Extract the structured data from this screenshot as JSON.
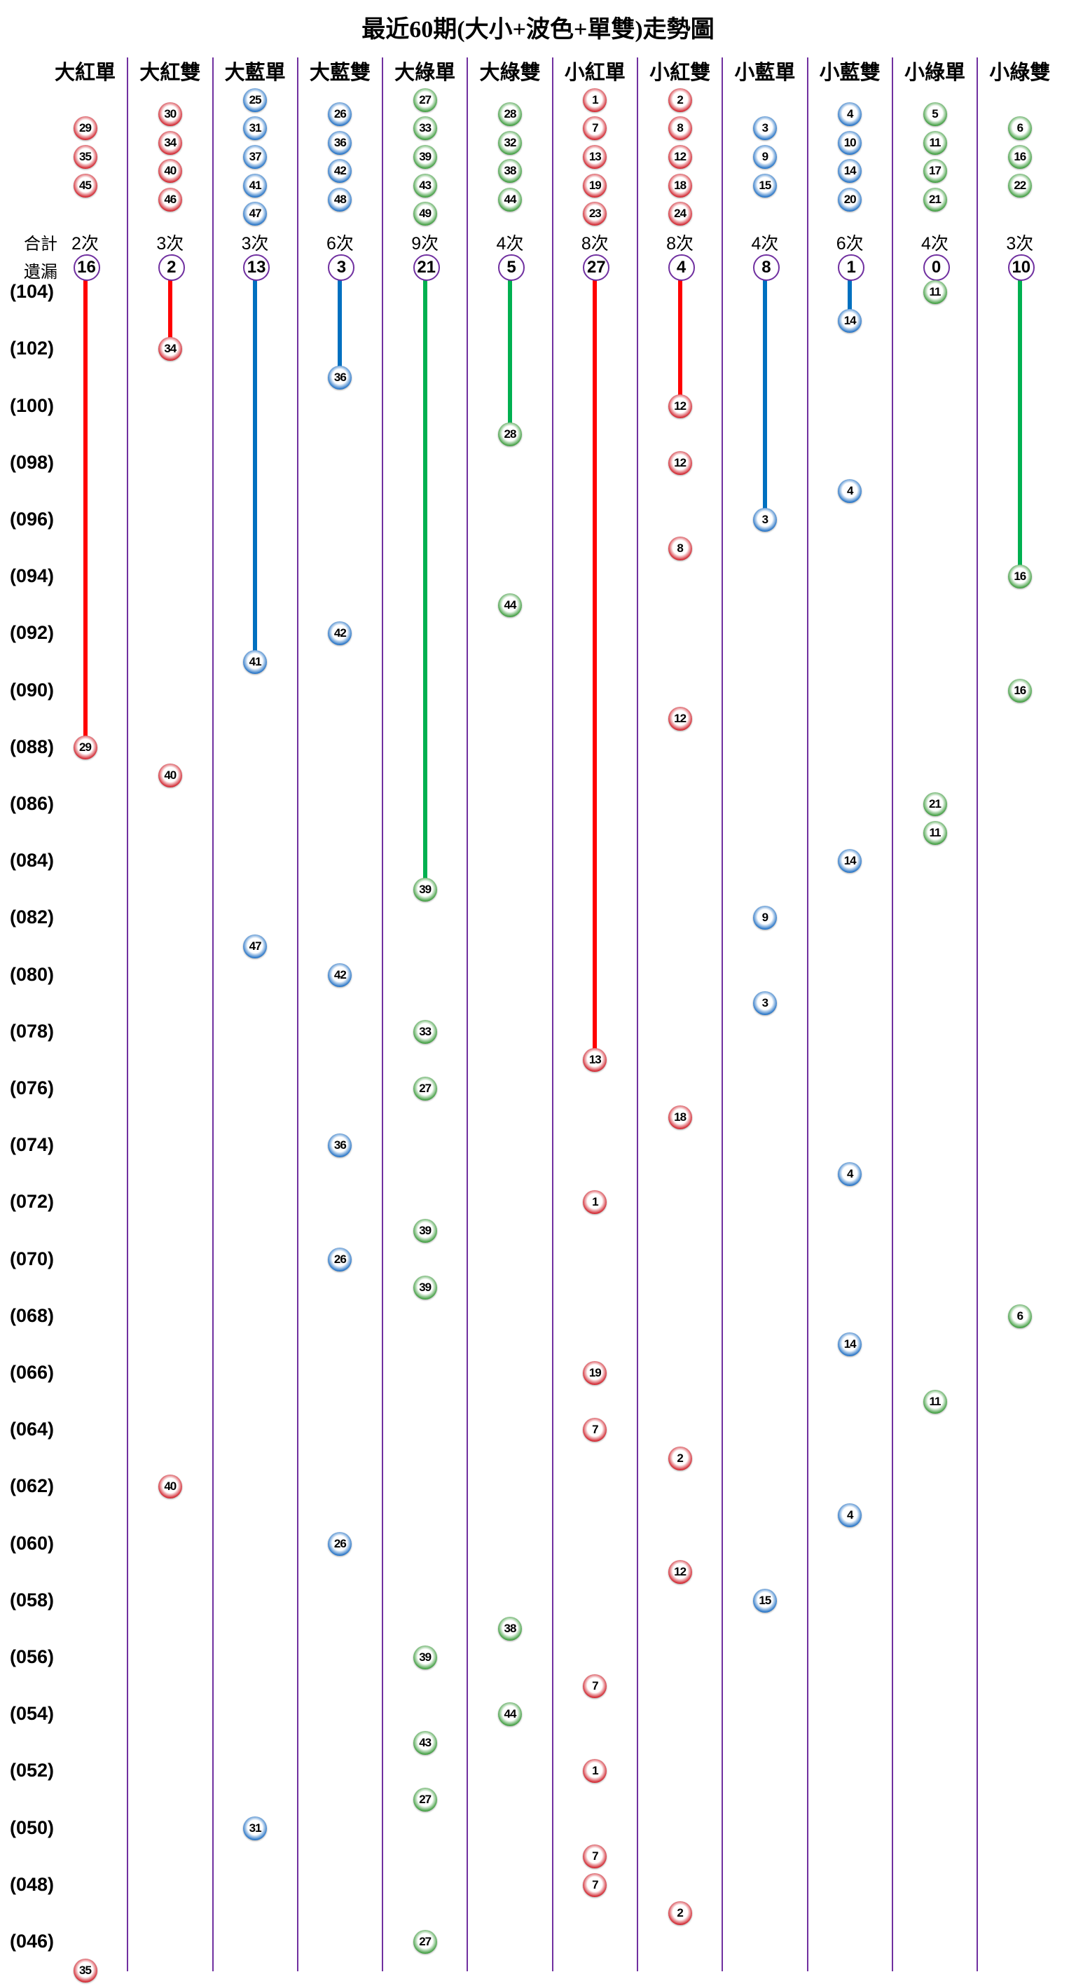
{
  "title": "最近60期(大小+波色+單雙)走勢圖",
  "labels": {
    "total": "合計",
    "missing": "遺漏"
  },
  "colors": {
    "red": "#d0202a",
    "blue": "#1f6fc4",
    "green": "#3b9b3b",
    "line_red": "#ff0000",
    "line_blue": "#0070c0",
    "line_green": "#00b050",
    "divider": "#7030a0"
  },
  "period_labels": [
    "(104)",
    "(102)",
    "(100)",
    "(098)",
    "(096)",
    "(094)",
    "(092)",
    "(090)",
    "(088)",
    "(086)",
    "(084)",
    "(082)",
    "(080)",
    "(078)",
    "(076)",
    "(074)",
    "(072)",
    "(070)",
    "(068)",
    "(066)",
    "(064)",
    "(062)",
    "(060)",
    "(058)",
    "(056)",
    "(054)",
    "(052)",
    "(050)",
    "(048)",
    "(046)"
  ],
  "columns": [
    {
      "name": "大紅單",
      "color": "red",
      "header_balls": [
        "29",
        "35",
        "45"
      ],
      "count": "2次",
      "miss": "16",
      "draws": [
        {
          "period": 88,
          "number": "29"
        },
        {
          "period": 45,
          "number": "35"
        }
      ]
    },
    {
      "name": "大紅雙",
      "color": "red",
      "header_balls": [
        "30",
        "34",
        "40",
        "46"
      ],
      "count": "3次",
      "miss": "2",
      "draws": [
        {
          "period": 102,
          "number": "34"
        },
        {
          "period": 87,
          "number": "40"
        },
        {
          "period": 62,
          "number": "40"
        }
      ]
    },
    {
      "name": "大藍單",
      "color": "blue",
      "header_balls": [
        "25",
        "31",
        "37",
        "41",
        "47"
      ],
      "count": "3次",
      "miss": "13",
      "draws": [
        {
          "period": 91,
          "number": "41"
        },
        {
          "period": 81,
          "number": "47"
        },
        {
          "period": 50,
          "number": "31"
        }
      ]
    },
    {
      "name": "大藍雙",
      "color": "blue",
      "header_balls": [
        "26",
        "36",
        "42",
        "48"
      ],
      "count": "6次",
      "miss": "3",
      "draws": [
        {
          "period": 101,
          "number": "36"
        },
        {
          "period": 92,
          "number": "42"
        },
        {
          "period": 80,
          "number": "42"
        },
        {
          "period": 74,
          "number": "36"
        },
        {
          "period": 70,
          "number": "26"
        },
        {
          "period": 60,
          "number": "26"
        }
      ]
    },
    {
      "name": "大綠單",
      "color": "green",
      "header_balls": [
        "27",
        "33",
        "39",
        "43",
        "49"
      ],
      "count": "9次",
      "miss": "21",
      "draws": [
        {
          "period": 83,
          "number": "39"
        },
        {
          "period": 78,
          "number": "33"
        },
        {
          "period": 76,
          "number": "27"
        },
        {
          "period": 71,
          "number": "39"
        },
        {
          "period": 69,
          "number": "39"
        },
        {
          "period": 56,
          "number": "39"
        },
        {
          "period": 53,
          "number": "43"
        },
        {
          "period": 51,
          "number": "27"
        },
        {
          "period": 46,
          "number": "27"
        }
      ]
    },
    {
      "name": "大綠雙",
      "color": "green",
      "header_balls": [
        "28",
        "32",
        "38",
        "44"
      ],
      "count": "4次",
      "miss": "5",
      "draws": [
        {
          "period": 99,
          "number": "28"
        },
        {
          "period": 93,
          "number": "44"
        },
        {
          "period": 57,
          "number": "38"
        },
        {
          "period": 54,
          "number": "44"
        }
      ]
    },
    {
      "name": "小紅單",
      "color": "red",
      "header_balls": [
        "1",
        "7",
        "13",
        "19",
        "23"
      ],
      "count": "8次",
      "miss": "27",
      "draws": [
        {
          "period": 77,
          "number": "13"
        },
        {
          "period": 72,
          "number": "1"
        },
        {
          "period": 66,
          "number": "19"
        },
        {
          "period": 64,
          "number": "7"
        },
        {
          "period": 55,
          "number": "7"
        },
        {
          "period": 52,
          "number": "1"
        },
        {
          "period": 49,
          "number": "7"
        },
        {
          "period": 48,
          "number": "7"
        }
      ]
    },
    {
      "name": "小紅雙",
      "color": "red",
      "header_balls": [
        "2",
        "8",
        "12",
        "18",
        "24"
      ],
      "count": "8次",
      "miss": "4",
      "draws": [
        {
          "period": 100,
          "number": "12"
        },
        {
          "period": 98,
          "number": "12"
        },
        {
          "period": 95,
          "number": "8"
        },
        {
          "period": 89,
          "number": "12"
        },
        {
          "period": 75,
          "number": "18"
        },
        {
          "period": 63,
          "number": "2"
        },
        {
          "period": 59,
          "number": "12"
        },
        {
          "period": 47,
          "number": "2"
        }
      ]
    },
    {
      "name": "小藍單",
      "color": "blue",
      "header_balls": [
        "3",
        "9",
        "15"
      ],
      "count": "4次",
      "miss": "8",
      "draws": [
        {
          "period": 96,
          "number": "3"
        },
        {
          "period": 82,
          "number": "9"
        },
        {
          "period": 79,
          "number": "3"
        },
        {
          "period": 58,
          "number": "15"
        }
      ]
    },
    {
      "name": "小藍雙",
      "color": "blue",
      "header_balls": [
        "4",
        "10",
        "14",
        "20"
      ],
      "count": "6次",
      "miss": "1",
      "draws": [
        {
          "period": 103,
          "number": "14"
        },
        {
          "period": 97,
          "number": "4"
        },
        {
          "period": 84,
          "number": "14"
        },
        {
          "period": 73,
          "number": "4"
        },
        {
          "period": 67,
          "number": "14"
        },
        {
          "period": 61,
          "number": "4"
        }
      ]
    },
    {
      "name": "小綠單",
      "color": "green",
      "header_balls": [
        "5",
        "11",
        "17",
        "21"
      ],
      "count": "4次",
      "miss": "0",
      "draws": [
        {
          "period": 104,
          "number": "11"
        },
        {
          "period": 86,
          "number": "21"
        },
        {
          "period": 85,
          "number": "11"
        },
        {
          "period": 65,
          "number": "11"
        }
      ]
    },
    {
      "name": "小綠雙",
      "color": "green",
      "header_balls": [
        "6",
        "16",
        "22"
      ],
      "count": "3次",
      "miss": "10",
      "draws": [
        {
          "period": 94,
          "number": "16"
        },
        {
          "period": 90,
          "number": "16"
        },
        {
          "period": 68,
          "number": "6"
        }
      ]
    }
  ]
}
